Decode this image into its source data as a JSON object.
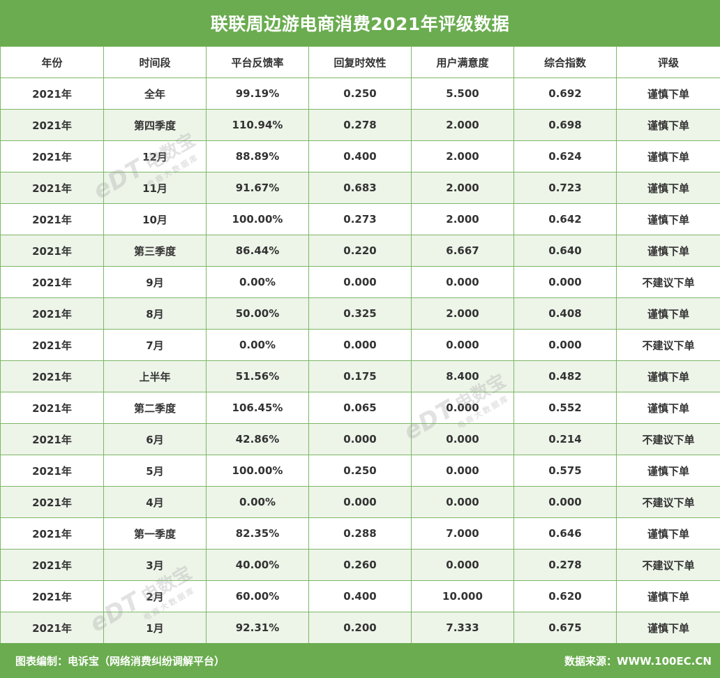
{
  "title": "联联周边游电商消费2021年评级数据",
  "headers": [
    "年份",
    "时间段",
    "平台反馈率",
    "回复时效性",
    "用户满意度",
    "综合指数",
    "评级"
  ],
  "rows": [
    [
      "2021年",
      "全年",
      "99.19%",
      "0.250",
      "5.500",
      "0.692",
      "谨慎下单"
    ],
    [
      "2021年",
      "第四季度",
      "110.94%",
      "0.278",
      "2.000",
      "0.698",
      "谨慎下单"
    ],
    [
      "2021年",
      "12月",
      "88.89%",
      "0.400",
      "2.000",
      "0.624",
      "谨慎下单"
    ],
    [
      "2021年",
      "11月",
      "91.67%",
      "0.683",
      "2.000",
      "0.723",
      "谨慎下单"
    ],
    [
      "2021年",
      "10月",
      "100.00%",
      "0.273",
      "2.000",
      "0.642",
      "谨慎下单"
    ],
    [
      "2021年",
      "第三季度",
      "86.44%",
      "0.220",
      "6.667",
      "0.640",
      "谨慎下单"
    ],
    [
      "2021年",
      "9月",
      "0.00%",
      "0.000",
      "0.000",
      "0.000",
      "不建议下单"
    ],
    [
      "2021年",
      "8月",
      "50.00%",
      "0.325",
      "2.000",
      "0.408",
      "谨慎下单"
    ],
    [
      "2021年",
      "7月",
      "0.00%",
      "0.000",
      "0.000",
      "0.000",
      "不建议下单"
    ],
    [
      "2021年",
      "上半年",
      "51.56%",
      "0.175",
      "8.400",
      "0.482",
      "谨慎下单"
    ],
    [
      "2021年",
      "第二季度",
      "106.45%",
      "0.065",
      "0.000",
      "0.552",
      "谨慎下单"
    ],
    [
      "2021年",
      "6月",
      "42.86%",
      "0.000",
      "0.000",
      "0.214",
      "不建议下单"
    ],
    [
      "2021年",
      "5月",
      "100.00%",
      "0.250",
      "0.000",
      "0.575",
      "谨慎下单"
    ],
    [
      "2021年",
      "4月",
      "0.00%",
      "0.000",
      "0.000",
      "0.000",
      "不建议下单"
    ],
    [
      "2021年",
      "第一季度",
      "82.35%",
      "0.288",
      "7.000",
      "0.646",
      "谨慎下单"
    ],
    [
      "2021年",
      "3月",
      "40.00%",
      "0.260",
      "0.000",
      "0.278",
      "不建议下单"
    ],
    [
      "2021年",
      "2月",
      "60.00%",
      "0.400",
      "10.000",
      "0.620",
      "谨慎下单"
    ],
    [
      "2021年",
      "1月",
      "92.31%",
      "0.200",
      "7.333",
      "0.675",
      "谨慎下单"
    ]
  ],
  "footer": {
    "left": "图表编制：电诉宝（网络消费纠纷调解平台）",
    "right": "数据来源：WWW.100EC.CN"
  },
  "watermark": {
    "logo": "eDT",
    "name": "电数宝",
    "sub": "电商大数据库"
  },
  "colors": {
    "brand_green": "#6aac4f",
    "row_alt": "#edf4e8",
    "border": "#7cb766"
  }
}
